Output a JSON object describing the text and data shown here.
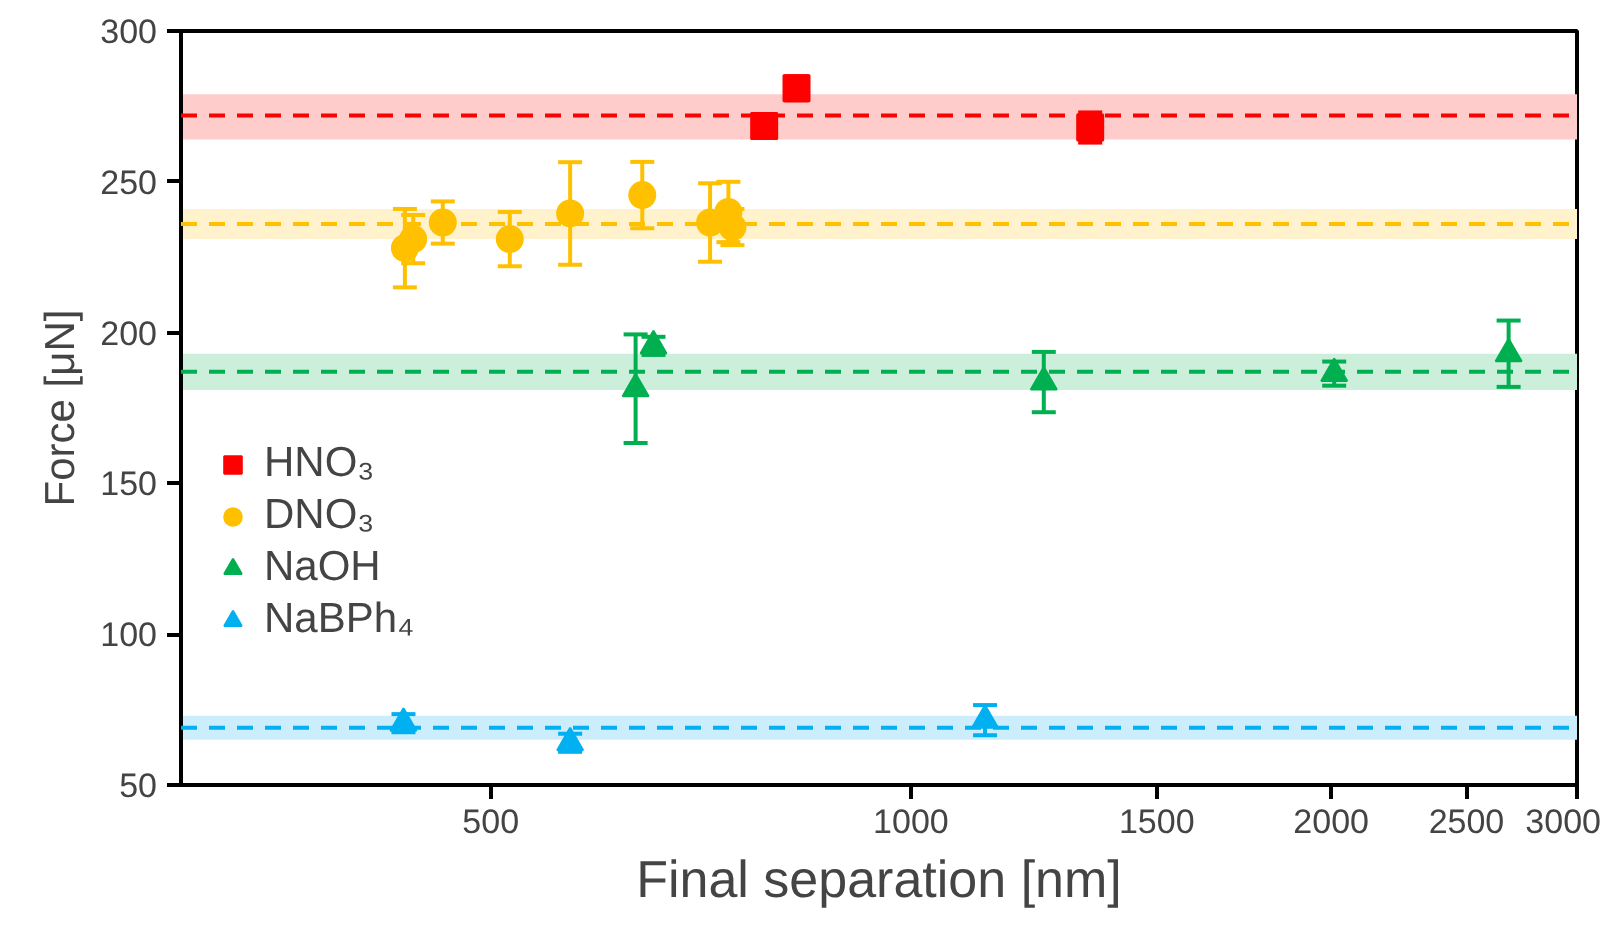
{
  "chart_data": {
    "type": "scatter",
    "xlabel": "Final separation [nm]",
    "ylabel": "Force [μN]",
    "log": "x",
    "xlim": [
      300,
      3000
    ],
    "xticks": [
      500,
      1000,
      1500,
      2000,
      2500,
      3000
    ],
    "ylim": [
      50,
      300
    ],
    "yticks": [
      50,
      100,
      150,
      200,
      250,
      300
    ],
    "grid": false,
    "legend": "left",
    "series": [
      {
        "name": "HNO₃",
        "color": "#ff0000",
        "marker": "square",
        "x": [
          785,
          828,
          1344
        ],
        "values": [
          268.5,
          281,
          268
        ],
        "errors": [
          3,
          4,
          5
        ]
      },
      {
        "name": "DNO₃",
        "color": "#ffc000",
        "marker": "circle",
        "x": [
          434,
          440,
          462,
          516,
          570,
          642,
          718,
          740,
          745
        ],
        "values": [
          228,
          231,
          236.5,
          231,
          239.5,
          245.6,
          236.5,
          240,
          235
        ],
        "errors": [
          13,
          8,
          7,
          9,
          17,
          11,
          13,
          10,
          6
        ]
      },
      {
        "name": "NaOH",
        "color": "#00b050",
        "marker": "triangle",
        "x": [
          635,
          654,
          1245,
          2010,
          2680
        ],
        "values": [
          181.4,
          195.6,
          183.6,
          186.4,
          193
        ],
        "errors": [
          18,
          3,
          10,
          4,
          11
        ]
      },
      {
        "name": "NaBPh₄",
        "color": "#00b0f0",
        "marker": "triangle",
        "x": [
          433,
          570,
          1130
        ],
        "values": [
          70.5,
          64,
          71.5
        ],
        "errors": [
          3,
          3,
          5
        ]
      }
    ],
    "ref_lines": [
      {
        "axis": "y",
        "value": 272,
        "color": "#ff0000",
        "line_style": "dashed"
      },
      {
        "axis": "y",
        "value": 236,
        "color": "#ffc000",
        "line_style": "dashed"
      },
      {
        "axis": "y",
        "value": 187,
        "color": "#00b050",
        "line_style": "dashed"
      },
      {
        "axis": "y",
        "value": 69,
        "color": "#00b0f0",
        "line_style": "dashed"
      }
    ],
    "bands": [
      {
        "axis": "y",
        "from": 264,
        "to": 279,
        "color": "#ffcccc"
      },
      {
        "axis": "y",
        "from": 231,
        "to": 241,
        "color": "#fff2cc"
      },
      {
        "axis": "y",
        "from": 181,
        "to": 193,
        "color": "#ccefdc"
      },
      {
        "axis": "y",
        "from": 65,
        "to": 73,
        "color": "#cceefc"
      }
    ]
  }
}
